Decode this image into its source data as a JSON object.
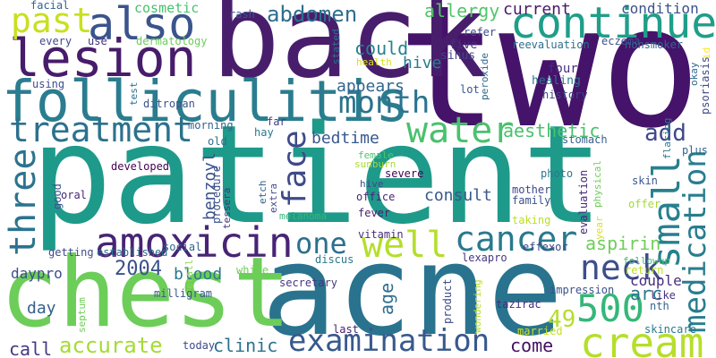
{
  "words": [
    {
      "text": "patient",
      "color": "#1e9a8a",
      "orientation": "horizontal"
    },
    {
      "text": "two",
      "color": "#45136a",
      "orientation": "horizontal"
    },
    {
      "text": "back",
      "color": "#481e6c",
      "orientation": "horizontal"
    },
    {
      "text": "acne",
      "color": "#29738e",
      "orientation": "horizontal"
    },
    {
      "text": "chest",
      "color": "#6dcd59",
      "orientation": "horizontal"
    },
    {
      "text": "folliculitis",
      "color": "#2a7d8e",
      "orientation": "horizontal"
    },
    {
      "text": "lesion",
      "color": "#471c6b",
      "orientation": "horizontal"
    },
    {
      "text": "continue",
      "color": "#1f9e89",
      "orientation": "horizontal"
    },
    {
      "text": "also",
      "color": "#3a548c",
      "orientation": "horizontal"
    },
    {
      "text": "past",
      "color": "#c8e020",
      "orientation": "horizontal"
    },
    {
      "text": "treatment",
      "color": "#2c718e",
      "orientation": "horizontal"
    },
    {
      "text": "month",
      "color": "#2b738e",
      "orientation": "horizontal"
    },
    {
      "text": "water",
      "color": "#4ac16d",
      "orientation": "horizontal"
    },
    {
      "text": "face",
      "color": "#3e4a89",
      "orientation": "vertical"
    },
    {
      "text": "three",
      "color": "#2c738e",
      "orientation": "vertical"
    },
    {
      "text": "amoxicin",
      "color": "#482475",
      "orientation": "horizontal"
    },
    {
      "text": "cancer",
      "color": "#29798e",
      "orientation": "horizontal"
    },
    {
      "text": "one",
      "color": "#2d708e",
      "orientation": "horizontal"
    },
    {
      "text": "well",
      "color": "#b5de2b",
      "orientation": "horizontal"
    },
    {
      "text": "neck",
      "color": "#3d4e8a",
      "orientation": "horizontal"
    },
    {
      "text": "small",
      "color": "#27808e",
      "orientation": "vertical"
    },
    {
      "text": "medication",
      "color": "#287d8e",
      "orientation": "vertical"
    },
    {
      "text": "cream",
      "color": "#b6de2b",
      "orientation": "horizontal"
    },
    {
      "text": "examination",
      "color": "#38598c",
      "orientation": "horizontal"
    },
    {
      "text": "500",
      "color": "#35b779",
      "orientation": "horizontal"
    },
    {
      "text": "abdomen",
      "color": "#2e6f8e",
      "orientation": "horizontal"
    },
    {
      "text": "allergy",
      "color": "#52c569",
      "orientation": "horizontal"
    },
    {
      "text": "current",
      "color": "#48196b",
      "orientation": "horizontal"
    },
    {
      "text": "condition",
      "color": "#3b528b",
      "orientation": "horizontal"
    },
    {
      "text": "cosmetic",
      "color": "#48c16e",
      "orientation": "horizontal"
    },
    {
      "text": "could",
      "color": "#26828e",
      "orientation": "horizontal"
    },
    {
      "text": "appears",
      "color": "#32658e",
      "orientation": "horizontal"
    },
    {
      "text": "hive",
      "color": "#277f8e",
      "orientation": "horizontal"
    },
    {
      "text": "bedtime",
      "color": "#38598c",
      "orientation": "horizontal"
    },
    {
      "text": "aesthetic",
      "color": "#4ac16d",
      "orientation": "horizontal"
    },
    {
      "text": "add",
      "color": "#3f4889",
      "orientation": "horizontal"
    },
    {
      "text": "2004",
      "color": "#3b518b",
      "orientation": "horizontal"
    },
    {
      "text": "blood",
      "color": "#2a778e",
      "orientation": "horizontal"
    },
    {
      "text": "benzoyl",
      "color": "#3b528b",
      "orientation": "vertical"
    },
    {
      "text": "consult",
      "color": "#38588c",
      "orientation": "horizontal"
    },
    {
      "text": "aspirin",
      "color": "#6ece58",
      "orientation": "horizontal"
    },
    {
      "text": "age",
      "color": "#2e6d8e",
      "orientation": "vertical"
    },
    {
      "text": "arc",
      "color": "#2a788e",
      "orientation": "horizontal"
    },
    {
      "text": "couple",
      "color": "#472f7d",
      "orientation": "horizontal"
    },
    {
      "text": "49",
      "color": "#b5de2b",
      "orientation": "horizontal"
    },
    {
      "text": "day",
      "color": "#34608d",
      "orientation": "horizontal"
    },
    {
      "text": "daypro",
      "color": "#3c4f8a",
      "orientation": "horizontal"
    },
    {
      "text": "call",
      "color": "#443983",
      "orientation": "horizontal"
    },
    {
      "text": "accurate",
      "color": "#a5db36",
      "orientation": "horizontal"
    },
    {
      "text": "clinic",
      "color": "#2c728e",
      "orientation": "horizontal"
    },
    {
      "text": "come",
      "color": "#471063",
      "orientation": "horizontal"
    },
    {
      "text": "facial",
      "color": "#33638d",
      "orientation": "horizontal"
    },
    {
      "text": "rash",
      "color": "#39568c",
      "orientation": "horizontal"
    },
    {
      "text": "dermatology",
      "color": "#6dcd59",
      "orientation": "horizontal"
    },
    {
      "text": "every",
      "color": "#3e4a89",
      "orientation": "horizontal"
    },
    {
      "text": "use",
      "color": "#46337f",
      "orientation": "horizontal"
    },
    {
      "text": "using",
      "color": "#3d4d8a",
      "orientation": "horizontal"
    },
    {
      "text": "ditropan",
      "color": "#3a538b",
      "orientation": "horizontal"
    },
    {
      "text": "test",
      "color": "#2d708e",
      "orientation": "vertical"
    },
    {
      "text": "stated",
      "color": "#2c728e",
      "orientation": "vertical"
    },
    {
      "text": "health",
      "color": "#d8e219",
      "orientation": "horizontal"
    },
    {
      "text": "refer",
      "color": "#3e4989",
      "orientation": "horizontal"
    },
    {
      "text": "five",
      "color": "#472f7d",
      "orientation": "horizontal"
    },
    {
      "text": "sinus",
      "color": "#3f4788",
      "orientation": "horizontal"
    },
    {
      "text": "reevaluation",
      "color": "#2e6e8e",
      "orientation": "horizontal"
    },
    {
      "text": "eczema",
      "color": "#3b528b",
      "orientation": "horizontal"
    },
    {
      "text": "nonsmoker",
      "color": "#32648e",
      "orientation": "horizontal"
    },
    {
      "text": "okay",
      "color": "#31678e",
      "orientation": "vertical"
    },
    {
      "text": "id",
      "color": "#fde725",
      "orientation": "vertical"
    },
    {
      "text": "psoriasis",
      "color": "#3e4a89",
      "orientation": "vertical"
    },
    {
      "text": "four",
      "color": "#46307e",
      "orientation": "horizontal"
    },
    {
      "text": "healing",
      "color": "#2a778e",
      "orientation": "horizontal"
    },
    {
      "text": "history",
      "color": "#3f4788",
      "orientation": "horizontal"
    },
    {
      "text": "lot",
      "color": "#39568c",
      "orientation": "horizontal"
    },
    {
      "text": "peroxide",
      "color": "#31688e",
      "orientation": "vertical"
    },
    {
      "text": "flaring",
      "color": "#2b758e",
      "orientation": "vertical"
    },
    {
      "text": "morning",
      "color": "#33638d",
      "orientation": "horizontal"
    },
    {
      "text": "far",
      "color": "#443a83",
      "orientation": "horizontal"
    },
    {
      "text": "hay",
      "color": "#2a788e",
      "orientation": "horizontal"
    },
    {
      "text": "old",
      "color": "#2e6f8e",
      "orientation": "horizontal"
    },
    {
      "text": "stomach",
      "color": "#35608d",
      "orientation": "horizontal"
    },
    {
      "text": "plus",
      "color": "#33638d",
      "orientation": "horizontal"
    },
    {
      "text": "developed",
      "color": "#440154",
      "orientation": "horizontal"
    },
    {
      "text": "female",
      "color": "#50c46a",
      "orientation": "horizontal"
    },
    {
      "text": "sunburn",
      "color": "#a8db34",
      "orientation": "horizontal"
    },
    {
      "text": "hive",
      "color": "#3e4a89",
      "orientation": "horizontal"
    },
    {
      "text": "severe",
      "color": "#440154",
      "orientation": "horizontal"
    },
    {
      "text": "office",
      "color": "#482576",
      "orientation": "horizontal"
    },
    {
      "text": "photo",
      "color": "#2a788e",
      "orientation": "horizontal"
    },
    {
      "text": "physical",
      "color": "#6ece58",
      "orientation": "vertical"
    },
    {
      "text": "mother",
      "color": "#3f4889",
      "orientation": "horizontal"
    },
    {
      "text": "family",
      "color": "#3b528b",
      "orientation": "horizontal"
    },
    {
      "text": "skin",
      "color": "#39568c",
      "orientation": "horizontal"
    },
    {
      "text": "offer",
      "color": "#a2da37",
      "orientation": "horizontal"
    },
    {
      "text": "evaluation",
      "color": "#482979",
      "orientation": "vertical"
    },
    {
      "text": "taking",
      "color": "#b8de29",
      "orientation": "horizontal"
    },
    {
      "text": "year",
      "color": "#d8e219",
      "orientation": "vertical"
    },
    {
      "text": "oral",
      "color": "#482475",
      "orientation": "horizontal"
    },
    {
      "text": "good",
      "color": "#3b528b",
      "orientation": "vertical"
    },
    {
      "text": "procedure",
      "color": "#3b528b",
      "orientation": "vertical"
    },
    {
      "text": "tessera",
      "color": "#46337f",
      "orientation": "vertical"
    },
    {
      "text": "etch",
      "color": "#33638d",
      "orientation": "vertical"
    },
    {
      "text": "extra",
      "color": "#3e4a89",
      "orientation": "vertical"
    },
    {
      "text": "melanoma",
      "color": "#35b779",
      "orientation": "horizontal"
    },
    {
      "text": "fever",
      "color": "#482173",
      "orientation": "horizontal"
    },
    {
      "text": "vitamin",
      "color": "#472d7b",
      "orientation": "horizontal"
    },
    {
      "text": "lexapro",
      "color": "#453781",
      "orientation": "horizontal"
    },
    {
      "text": "effexor",
      "color": "#3f4788",
      "orientation": "horizontal"
    },
    {
      "text": "established",
      "color": "#2e6e8e",
      "orientation": "horizontal"
    },
    {
      "text": "social",
      "color": "#33638d",
      "orientation": "horizontal"
    },
    {
      "text": "getting",
      "color": "#3e4c8a",
      "orientation": "horizontal"
    },
    {
      "text": "white",
      "color": "#6ece58",
      "orientation": "horizontal"
    },
    {
      "text": "discus",
      "color": "#2a788e",
      "orientation": "horizontal"
    },
    {
      "text": "secretary",
      "color": "#443983",
      "orientation": "horizontal"
    },
    {
      "text": "followup",
      "color": "#3fbc73",
      "orientation": "horizontal"
    },
    {
      "text": "return",
      "color": "#bddf26",
      "orientation": "horizontal"
    },
    {
      "text": "overall",
      "color": "#8fd744",
      "orientation": "vertical"
    },
    {
      "text": "milligram",
      "color": "#38598c",
      "orientation": "horizontal"
    },
    {
      "text": "product",
      "color": "#3e4a89",
      "orientation": "vertical"
    },
    {
      "text": "impression",
      "color": "#3b528b",
      "orientation": "horizontal"
    },
    {
      "text": "like",
      "color": "#46337f",
      "orientation": "horizontal"
    },
    {
      "text": "nth",
      "color": "#32648e",
      "orientation": "horizontal"
    },
    {
      "text": "septum",
      "color": "#6ece58",
      "orientation": "vertical"
    },
    {
      "text": "last",
      "color": "#482173",
      "orientation": "horizontal"
    },
    {
      "text": "wondering",
      "color": "#b5de2b",
      "orientation": "vertical"
    },
    {
      "text": "tazirac",
      "color": "#472d7b",
      "orientation": "horizontal"
    },
    {
      "text": "married",
      "color": "#c8e020",
      "orientation": "horizontal"
    },
    {
      "text": "skincare",
      "color": "#2a788e",
      "orientation": "horizontal"
    },
    {
      "text": "today",
      "color": "#3e4a89",
      "orientation": "horizontal"
    }
  ]
}
